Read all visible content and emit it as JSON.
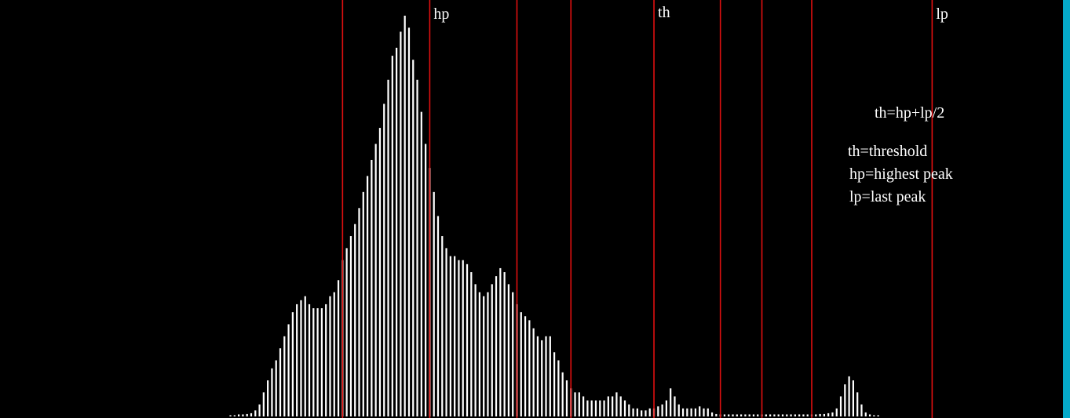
{
  "colors": {
    "background": "#000000",
    "bars": "#ffffff",
    "markers": "#e01010",
    "text": "#ffffff",
    "border": "#05a9c9"
  },
  "legend": {
    "formula": "th=hp+lp/2",
    "definitions": [
      "th=threshold",
      "hp=highest peak",
      "lp=last peak"
    ]
  },
  "chart_data": {
    "type": "bar",
    "title": "",
    "xlabel": "",
    "ylabel": "",
    "xlim": [
      0,
      255
    ],
    "ylim": [
      0,
      100
    ],
    "grid": false,
    "bin_start": 55,
    "values": [
      0.3,
      0.3,
      0.5,
      0.5,
      0.6,
      0.8,
      1.5,
      3,
      6,
      9,
      12,
      14,
      17,
      20,
      23,
      26,
      28,
      29,
      30,
      28,
      27,
      27,
      27,
      28,
      30,
      31,
      34,
      39,
      42,
      45,
      48,
      52,
      56,
      60,
      64,
      68,
      72,
      78,
      84,
      90,
      92,
      96,
      100,
      97,
      89,
      84,
      76,
      68,
      62,
      56,
      50,
      45,
      42,
      40,
      40,
      39,
      39,
      38,
      36,
      33,
      31,
      30,
      31,
      33,
      35,
      37,
      36,
      33,
      31,
      28,
      26,
      25,
      24,
      22,
      20,
      19,
      20,
      20,
      16,
      14,
      11,
      9,
      7,
      6,
      6,
      5,
      4,
      4,
      4,
      4,
      4,
      5,
      5,
      6,
      5,
      4,
      3,
      2,
      2,
      1.5,
      1.5,
      2,
      2,
      2.5,
      3,
      4,
      7,
      5,
      3,
      2,
      2,
      2,
      2,
      2.5,
      2,
      2,
      1,
      0.6,
      0.5,
      0.5,
      0.5,
      0.5,
      0.5,
      0.5,
      0.5,
      0.5,
      0.5,
      0.5,
      0.5,
      0.5,
      0.5,
      0.5,
      0.5,
      0.5,
      0.5,
      0.5,
      0.5,
      0.5,
      0.5,
      0.5,
      0.5,
      0.5,
      0.6,
      0.6,
      0.8,
      1,
      2,
      5,
      8,
      10,
      9,
      6,
      3,
      1,
      0.5,
      0.3,
      0.3
    ],
    "markers": [
      {
        "label": "",
        "x": 82
      },
      {
        "label": "hp",
        "x": 103
      },
      {
        "label": "",
        "x": 124
      },
      {
        "label": "",
        "x": 137
      },
      {
        "label": "th",
        "x": 157
      },
      {
        "label": "",
        "x": 173
      },
      {
        "label": "",
        "x": 183
      },
      {
        "label": "",
        "x": 195
      },
      {
        "label": "lp",
        "x": 224
      }
    ]
  }
}
